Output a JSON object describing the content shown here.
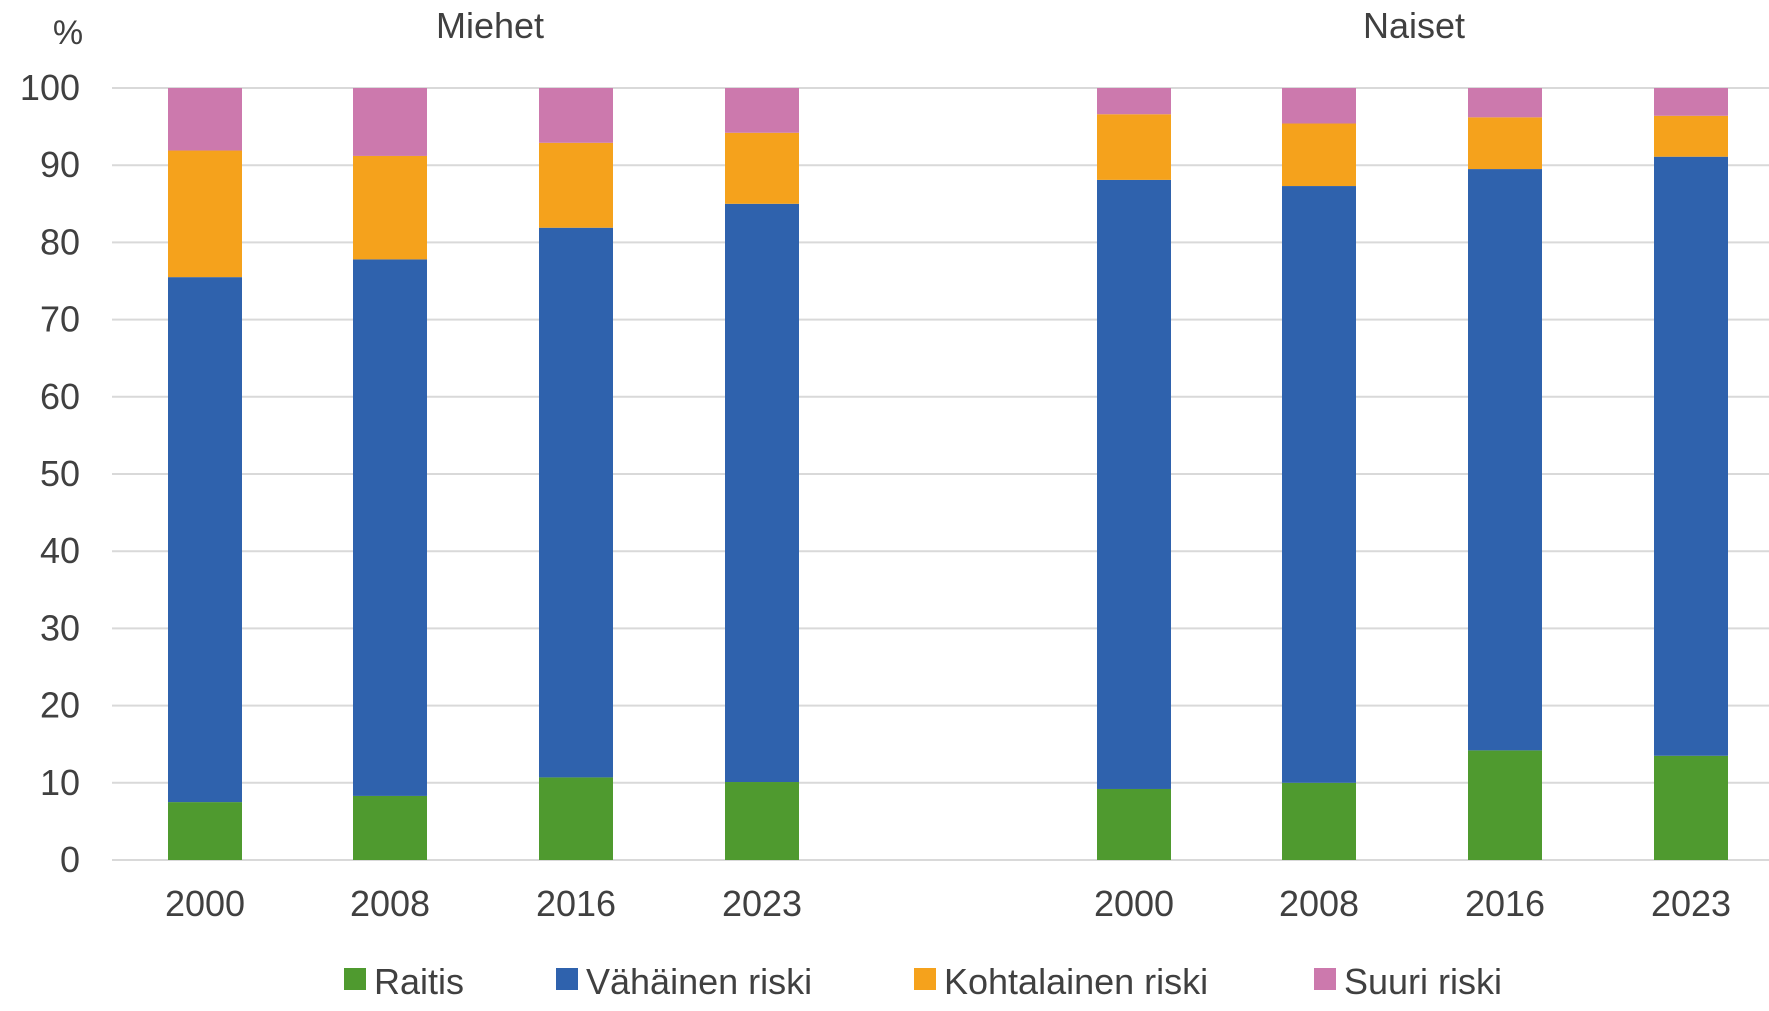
{
  "chart_data": {
    "type": "bar",
    "stacked": true,
    "ylabel": "%",
    "ylim": [
      0,
      100
    ],
    "yticks": [
      0,
      10,
      20,
      30,
      40,
      50,
      60,
      70,
      80,
      90,
      100
    ],
    "grid": true,
    "legend_position": "bottom",
    "groups": [
      {
        "name": "Miehet",
        "categories": [
          "2000",
          "2008",
          "2016",
          "2023"
        ],
        "series": [
          {
            "name": "Raitis",
            "color": "#4f9a2f",
            "values": [
              7.5,
              8.3,
              10.7,
              10.1
            ]
          },
          {
            "name": "Vähäinen riski",
            "color": "#2f62ad",
            "values": [
              68.0,
              69.5,
              71.2,
              74.9
            ]
          },
          {
            "name": "Kohtalainen riski",
            "color": "#f5a21c",
            "values": [
              16.4,
              13.4,
              11.0,
              9.2
            ]
          },
          {
            "name": "Suuri riski",
            "color": "#cc79ad",
            "values": [
              8.1,
              8.8,
              7.1,
              5.8
            ]
          }
        ]
      },
      {
        "name": "Naiset",
        "categories": [
          "2000",
          "2008",
          "2016",
          "2023"
        ],
        "series": [
          {
            "name": "Raitis",
            "color": "#4f9a2f",
            "values": [
              9.2,
              10.0,
              14.2,
              13.5
            ]
          },
          {
            "name": "Vähäinen riski",
            "color": "#2f62ad",
            "values": [
              78.9,
              77.3,
              75.3,
              77.6
            ]
          },
          {
            "name": "Kohtalainen riski",
            "color": "#f5a21c",
            "values": [
              8.5,
              8.1,
              6.7,
              5.3
            ]
          },
          {
            "name": "Suuri riski",
            "color": "#cc79ad",
            "values": [
              3.4,
              4.6,
              3.8,
              3.6
            ]
          }
        ]
      }
    ],
    "legend": [
      "Raitis",
      "Vähäinen riski",
      "Kohtalainen riski",
      "Suuri riski"
    ]
  },
  "colors": {
    "grid": "#d9d9d9",
    "text": "#404040"
  }
}
